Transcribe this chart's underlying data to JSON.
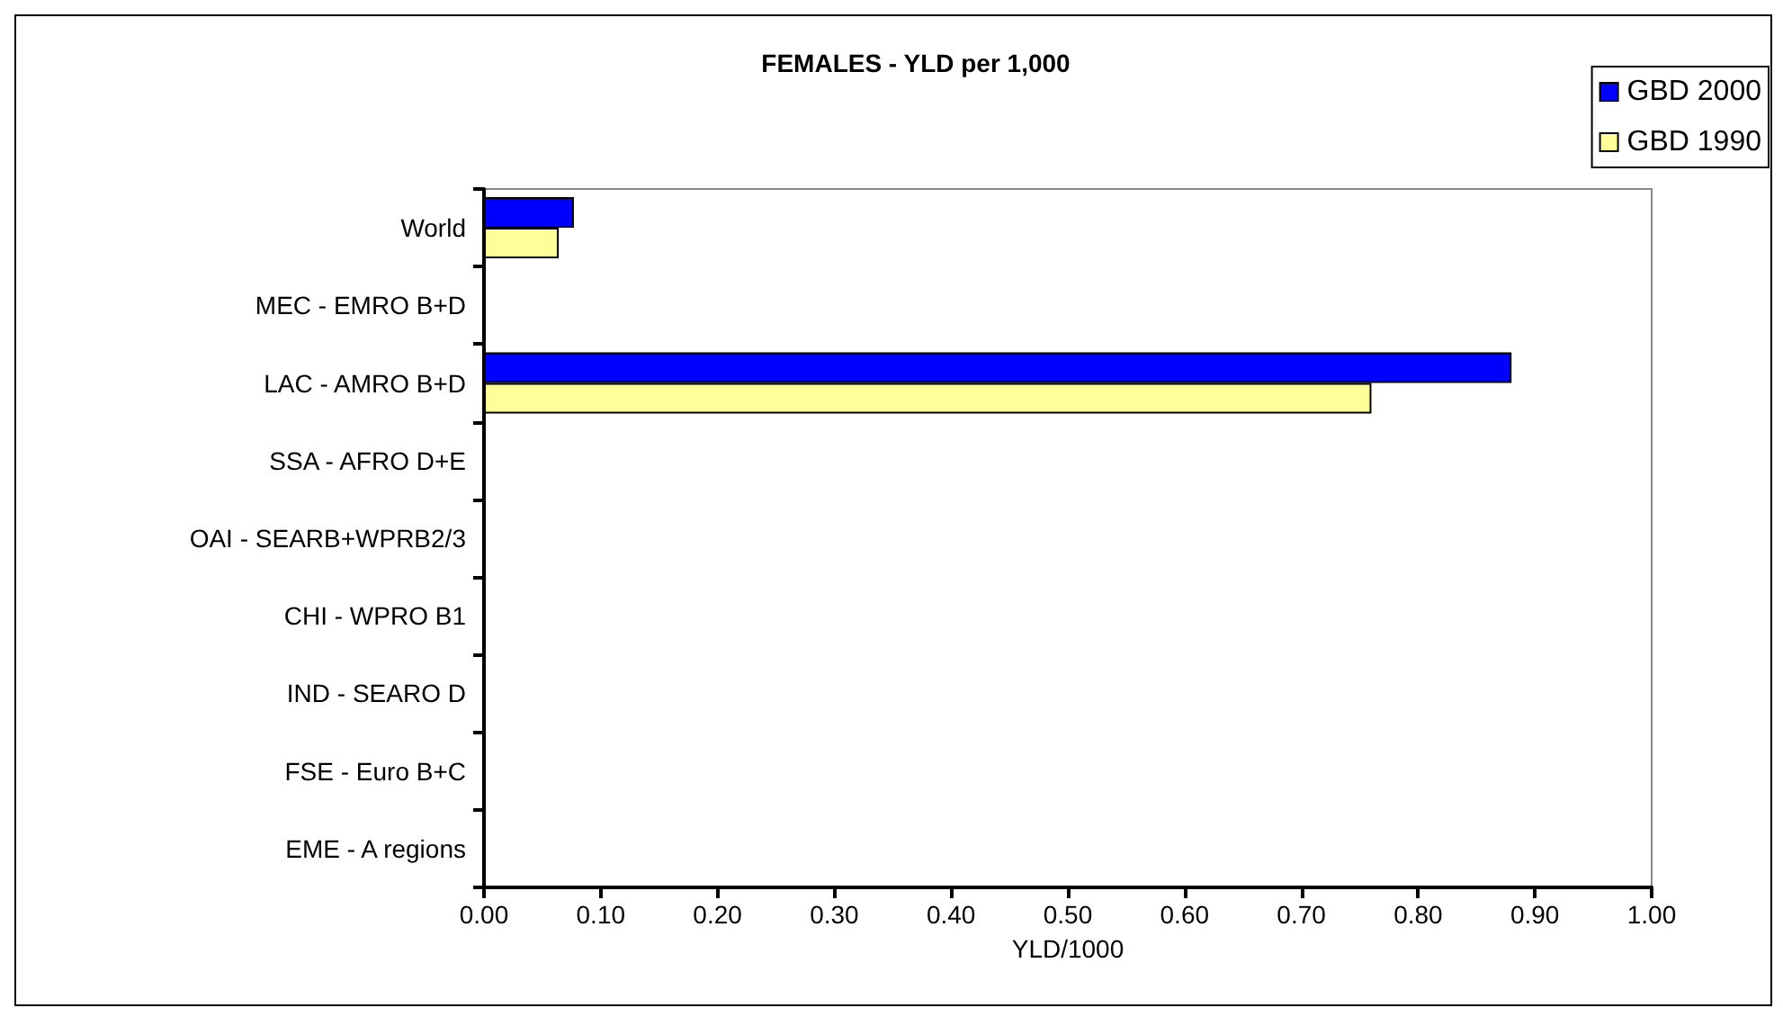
{
  "chart_data": {
    "type": "bar",
    "orientation": "horizontal",
    "title": "FEMALES - YLD per 1,000",
    "xlabel": "YLD/1000",
    "categories": [
      "World",
      "MEC - EMRO B+D",
      "LAC - AMRO B+D",
      "SSA - AFRO D+E",
      "OAI - SEARB+WPRB2/3",
      "CHI - WPRO B1",
      "IND - SEARO D",
      "FSE - Euro B+C",
      "EME - A regions"
    ],
    "series": [
      {
        "name": "GBD 2000",
        "color": "#0000ff",
        "values": [
          0.077,
          null,
          0.88,
          null,
          null,
          null,
          null,
          null,
          null
        ]
      },
      {
        "name": "GBD 1990",
        "color": "#ffff99",
        "values": [
          0.064,
          null,
          0.76,
          null,
          null,
          null,
          null,
          null,
          null
        ]
      }
    ],
    "xlim": [
      0,
      1
    ],
    "xticks": [
      {
        "value": 0,
        "label": "0.00"
      },
      {
        "value": 0.1,
        "label": "0.10"
      },
      {
        "value": 0.2,
        "label": "0.20"
      },
      {
        "value": 0.3,
        "label": "0.30"
      },
      {
        "value": 0.4,
        "label": "0.40"
      },
      {
        "value": 0.5,
        "label": "0.50"
      },
      {
        "value": 0.6,
        "label": "0.60"
      },
      {
        "value": 0.7,
        "label": "0.70"
      },
      {
        "value": 0.8,
        "label": "0.80"
      },
      {
        "value": 0.9,
        "label": "0.90"
      },
      {
        "value": 1,
        "label": "1.00"
      }
    ],
    "grid": false,
    "legend": "top right"
  }
}
